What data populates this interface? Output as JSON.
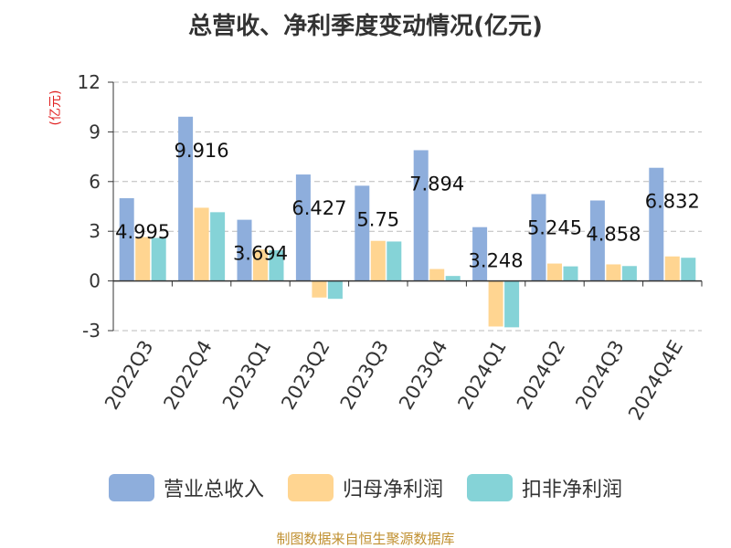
{
  "chart_data": {
    "type": "bar",
    "title": "总营收、净利季度变动情况(亿元)",
    "ylabel": "(亿元)",
    "ylim": [
      -3,
      12
    ],
    "yticks": [
      -3,
      0,
      3,
      6,
      9,
      12
    ],
    "grid": true,
    "legend_position": "bottom",
    "categories": [
      "2022Q3",
      "2022Q4",
      "2023Q1",
      "2023Q2",
      "2023Q3",
      "2023Q4",
      "2024Q1",
      "2024Q2",
      "2024Q3",
      "2024Q4E"
    ],
    "series": [
      {
        "name": "营业总收入",
        "color": "#8eaedc",
        "values": [
          4.995,
          9.916,
          3.694,
          6.427,
          5.75,
          7.894,
          3.248,
          5.245,
          4.858,
          6.832
        ]
      },
      {
        "name": "归母净利润",
        "color": "#ffd591",
        "values": [
          2.65,
          4.42,
          1.9,
          -1.0,
          2.42,
          0.72,
          -2.75,
          1.05,
          1.0,
          1.48
        ]
      },
      {
        "name": "扣非净利润",
        "color": "#85d3d7",
        "values": [
          2.6,
          4.15,
          1.85,
          -1.08,
          2.38,
          0.3,
          -2.8,
          0.88,
          0.9,
          1.4
        ]
      }
    ],
    "data_labels": [
      "4.995",
      "9.916",
      "3.694",
      "6.427",
      "5.75",
      "7.894",
      "3.248",
      "5.245",
      "4.858",
      "6.832"
    ]
  },
  "source": "制图数据来自恒生聚源数据库"
}
